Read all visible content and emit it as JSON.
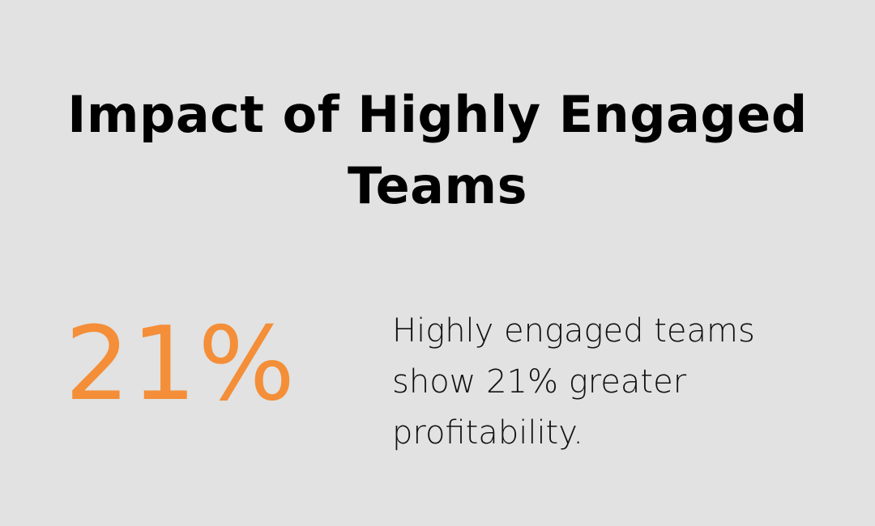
{
  "title": "Impact of Highly Engaged Teams",
  "stat": {
    "value": "21%",
    "description": "Highly engaged teams show 21% greater profitability."
  },
  "colors": {
    "background": "#e1e2e1",
    "accent": "#f48e38",
    "text": "#111111"
  }
}
